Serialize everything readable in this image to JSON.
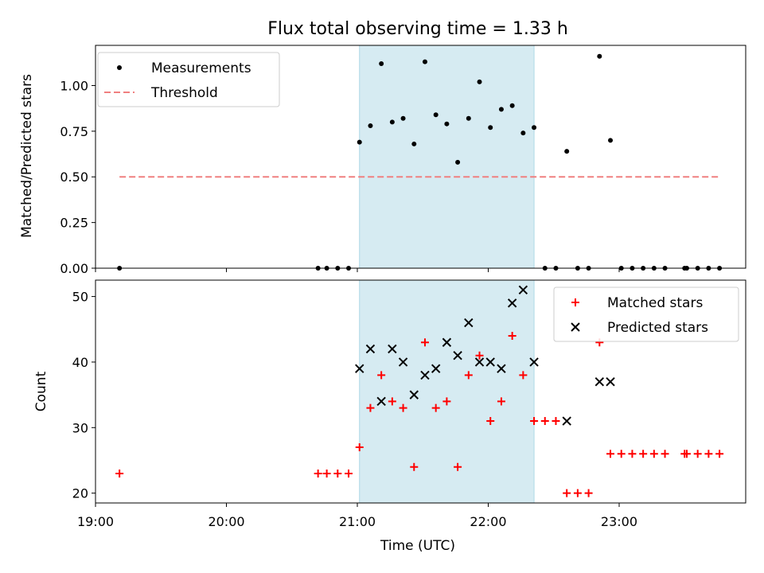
{
  "chart_data": [
    {
      "type": "scatter",
      "title": "Flux total observing time = 1.33 h",
      "xlabel": "",
      "ylabel": "Matched/Predicted stars",
      "ylim": [
        0,
        1.22
      ],
      "xlim": [
        "19:00",
        "23:58"
      ],
      "yticks": [
        "0.00",
        "0.25",
        "0.50",
        "0.75",
        "1.00"
      ],
      "ytick_values": [
        0,
        0.25,
        0.5,
        0.75,
        1.0
      ],
      "shaded_interval": [
        "21:01",
        "22:21"
      ],
      "legend_placement": "upper-left",
      "series": [
        {
          "name": "Measurements",
          "marker": "dot",
          "color": "#000000",
          "points": [
            [
              "19:11",
              0.0
            ],
            [
              "20:42",
              0.0
            ],
            [
              "20:46",
              0.0
            ],
            [
              "20:51",
              0.0
            ],
            [
              "20:56",
              0.0
            ],
            [
              "21:01",
              0.69
            ],
            [
              "21:06",
              0.78
            ],
            [
              "21:11",
              1.12
            ],
            [
              "21:16",
              0.8
            ],
            [
              "21:21",
              0.82
            ],
            [
              "21:26",
              0.68
            ],
            [
              "21:31",
              1.13
            ],
            [
              "21:36",
              0.84
            ],
            [
              "21:41",
              0.79
            ],
            [
              "21:46",
              0.58
            ],
            [
              "21:51",
              0.82
            ],
            [
              "21:56",
              1.02
            ],
            [
              "22:01",
              0.77
            ],
            [
              "22:06",
              0.87
            ],
            [
              "22:11",
              0.89
            ],
            [
              "22:16",
              0.74
            ],
            [
              "22:21",
              0.77
            ],
            [
              "22:26",
              0.0
            ],
            [
              "22:31",
              0.0
            ],
            [
              "22:36",
              0.64
            ],
            [
              "22:41",
              0.0
            ],
            [
              "22:46",
              0.0
            ],
            [
              "22:51",
              1.16
            ],
            [
              "22:56",
              0.7
            ],
            [
              "23:01",
              0.0
            ],
            [
              "23:06",
              0.0
            ],
            [
              "23:11",
              0.0
            ],
            [
              "23:16",
              0.0
            ],
            [
              "23:21",
              0.0
            ],
            [
              "23:30",
              0.0
            ],
            [
              "23:31",
              0.0
            ],
            [
              "23:36",
              0.0
            ],
            [
              "23:41",
              0.0
            ],
            [
              "23:46",
              0.0
            ]
          ]
        },
        {
          "name": "Threshold",
          "marker": "dashed-line",
          "color": "#f08080",
          "points": [
            [
              "19:11",
              0.5
            ],
            [
              "23:46",
              0.5
            ]
          ]
        }
      ]
    },
    {
      "type": "scatter",
      "title": "",
      "xlabel": "Time (UTC)",
      "ylabel": "Count",
      "ylim": [
        18.5,
        52.5
      ],
      "xlim": [
        "19:00",
        "23:58"
      ],
      "xticks": [
        "19:00",
        "20:00",
        "21:00",
        "22:00",
        "23:00"
      ],
      "yticks": [
        "20",
        "30",
        "40",
        "50"
      ],
      "ytick_values": [
        20,
        30,
        40,
        50
      ],
      "shaded_interval": [
        "21:01",
        "22:21"
      ],
      "legend_placement": "upper-right",
      "series": [
        {
          "name": "Matched stars",
          "marker": "plus",
          "color": "#ff0000",
          "points": [
            [
              "19:11",
              23
            ],
            [
              "20:42",
              23
            ],
            [
              "20:46",
              23
            ],
            [
              "20:51",
              23
            ],
            [
              "20:56",
              23
            ],
            [
              "21:01",
              27
            ],
            [
              "21:06",
              33
            ],
            [
              "21:11",
              38
            ],
            [
              "21:16",
              34
            ],
            [
              "21:21",
              33
            ],
            [
              "21:26",
              24
            ],
            [
              "21:31",
              43
            ],
            [
              "21:36",
              33
            ],
            [
              "21:41",
              34
            ],
            [
              "21:46",
              24
            ],
            [
              "21:51",
              38
            ],
            [
              "21:56",
              41
            ],
            [
              "22:01",
              31
            ],
            [
              "22:06",
              34
            ],
            [
              "22:11",
              44
            ],
            [
              "22:16",
              38
            ],
            [
              "22:21",
              31
            ],
            [
              "22:26",
              31
            ],
            [
              "22:31",
              31
            ],
            [
              "22:36",
              20
            ],
            [
              "22:41",
              20
            ],
            [
              "22:46",
              20
            ],
            [
              "22:51",
              43
            ],
            [
              "22:56",
              26
            ],
            [
              "23:01",
              26
            ],
            [
              "23:06",
              26
            ],
            [
              "23:11",
              26
            ],
            [
              "23:16",
              26
            ],
            [
              "23:21",
              26
            ],
            [
              "23:30",
              26
            ],
            [
              "23:31",
              26
            ],
            [
              "23:36",
              26
            ],
            [
              "23:41",
              26
            ],
            [
              "23:46",
              26
            ]
          ]
        },
        {
          "name": "Predicted stars",
          "marker": "x",
          "color": "#000000",
          "points": [
            [
              "21:01",
              39
            ],
            [
              "21:06",
              42
            ],
            [
              "21:11",
              34
            ],
            [
              "21:16",
              42
            ],
            [
              "21:21",
              40
            ],
            [
              "21:26",
              35
            ],
            [
              "21:31",
              38
            ],
            [
              "21:36",
              39
            ],
            [
              "21:41",
              43
            ],
            [
              "21:46",
              41
            ],
            [
              "21:51",
              46
            ],
            [
              "21:56",
              40
            ],
            [
              "22:01",
              40
            ],
            [
              "22:06",
              39
            ],
            [
              "22:11",
              49
            ],
            [
              "22:16",
              51
            ],
            [
              "22:21",
              40
            ],
            [
              "22:36",
              31
            ],
            [
              "22:51",
              37
            ],
            [
              "22:56",
              37
            ]
          ]
        }
      ]
    }
  ]
}
